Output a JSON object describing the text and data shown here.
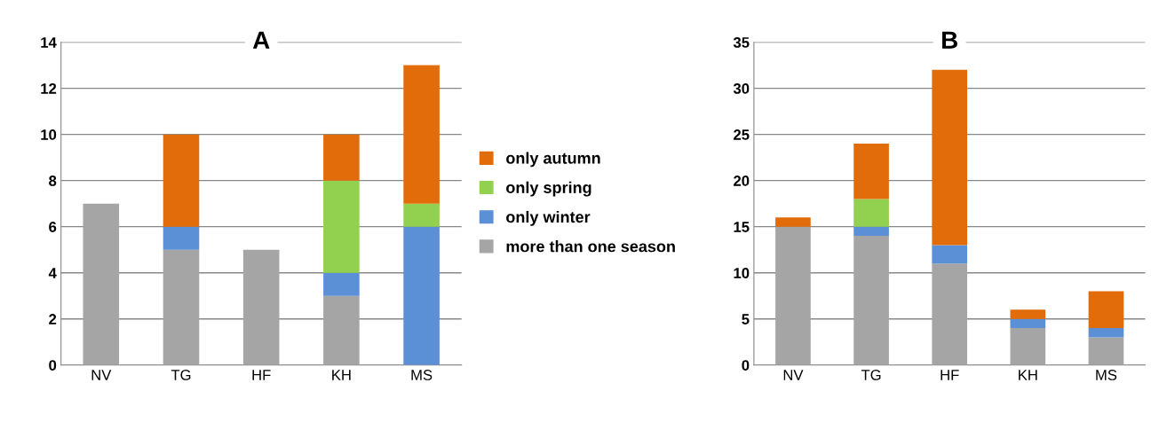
{
  "chart_data": [
    {
      "type": "bar",
      "title": "A",
      "stacked": true,
      "categories": [
        "NV",
        "TG",
        "HF",
        "KH",
        "MS"
      ],
      "ylim": [
        0,
        14
      ],
      "yticks": [
        0,
        2,
        4,
        6,
        8,
        10,
        12,
        14
      ],
      "grid": "y",
      "legend": "right",
      "series": [
        {
          "name": "more than one season",
          "color": "#a5a5a5",
          "values": [
            7,
            5,
            5,
            3,
            0
          ]
        },
        {
          "name": "only winter",
          "color": "#5b8fd6",
          "values": [
            0,
            1,
            0,
            1,
            6
          ]
        },
        {
          "name": "only spring",
          "color": "#92d050",
          "values": [
            0,
            0,
            0,
            4,
            1
          ]
        },
        {
          "name": "only autumn",
          "color": "#e36c0a",
          "values": [
            0,
            4,
            0,
            2,
            6
          ]
        }
      ]
    },
    {
      "type": "bar",
      "title": "B",
      "stacked": true,
      "categories": [
        "NV",
        "TG",
        "HF",
        "KH",
        "MS"
      ],
      "ylim": [
        0,
        35
      ],
      "yticks": [
        0,
        5,
        10,
        15,
        20,
        25,
        30,
        35
      ],
      "grid": "y",
      "series": [
        {
          "color": "#a5a5a5",
          "values": [
            15,
            14,
            11,
            4,
            3
          ]
        },
        {
          "color": "#5b8fd6",
          "values": [
            0,
            1,
            2,
            1,
            1
          ]
        },
        {
          "color": "#92d050",
          "values": [
            0,
            3,
            0,
            0,
            0
          ]
        },
        {
          "color": "#e36c0a",
          "values": [
            1,
            6,
            19,
            1,
            4
          ]
        }
      ]
    }
  ]
}
